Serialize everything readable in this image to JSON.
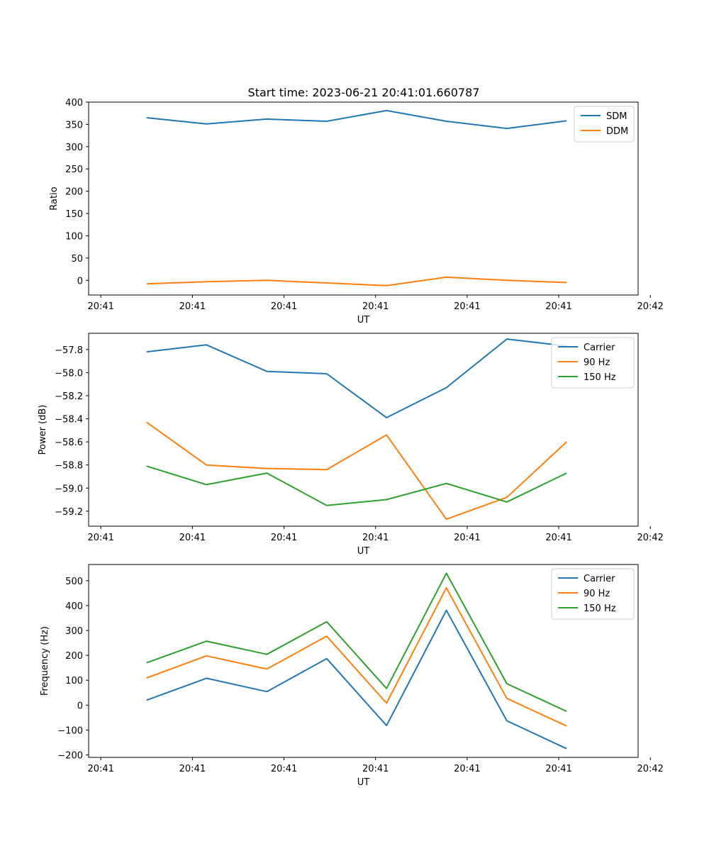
{
  "figure": {
    "title": "Start time: 2023-06-21 20:41:01.660787"
  },
  "chart_data": [
    {
      "type": "line",
      "xlabel": "UT",
      "ylabel": "Ratio",
      "xlim": [
        0.2,
        9.2
      ],
      "x_ticks": [
        0.4,
        1.9,
        3.4,
        4.9,
        6.4,
        7.9,
        9.4
      ],
      "x_tick_labels": [
        "20:41",
        "20:41",
        "20:41",
        "20:41",
        "20:41",
        "20:41",
        "20:42"
      ],
      "ylim": [
        -33,
        400
      ],
      "y_ticks": [
        0,
        50,
        100,
        150,
        200,
        250,
        300,
        350,
        400
      ],
      "y_tick_labels": [
        "0",
        "50",
        "100",
        "150",
        "200",
        "250",
        "300",
        "350",
        "400"
      ],
      "grid": false,
      "legend_position": "top-right",
      "x": [
        1.15,
        2.13,
        3.12,
        4.1,
        5.08,
        6.06,
        7.05,
        8.03
      ],
      "series": [
        {
          "name": "SDM",
          "color": "#1f77b4",
          "values": [
            365,
            351,
            362,
            357,
            381,
            357,
            341,
            358
          ]
        },
        {
          "name": "DDM",
          "color": "#ff7f0e",
          "values": [
            -8,
            -3,
            0,
            -6,
            -12,
            7,
            0,
            -5
          ]
        }
      ]
    },
    {
      "type": "line",
      "xlabel": "UT",
      "ylabel": "Power (dB)",
      "xlim": [
        0.2,
        9.2
      ],
      "x_ticks": [
        0.4,
        1.9,
        3.4,
        4.9,
        6.4,
        7.9,
        9.4
      ],
      "x_tick_labels": [
        "20:41",
        "20:41",
        "20:41",
        "20:41",
        "20:41",
        "20:41",
        "20:42"
      ],
      "ylim": [
        -59.33,
        -57.66
      ],
      "y_ticks": [
        -57.8,
        -58.0,
        -58.2,
        -58.4,
        -58.6,
        -58.8,
        -59.0,
        -59.2
      ],
      "y_tick_labels": [
        "−57.8",
        "−58.0",
        "−58.2",
        "−58.4",
        "−58.6",
        "−58.8",
        "−59.0",
        "−59.2"
      ],
      "grid": false,
      "legend_position": "top-right",
      "x": [
        1.15,
        2.13,
        3.12,
        4.1,
        5.08,
        6.06,
        7.05,
        8.03
      ],
      "series": [
        {
          "name": "Carrier",
          "color": "#1f77b4",
          "values": [
            -57.82,
            -57.76,
            -57.99,
            -58.01,
            -58.39,
            -58.13,
            -57.71,
            -57.77
          ]
        },
        {
          "name": "90 Hz",
          "color": "#ff7f0e",
          "values": [
            -58.43,
            -58.8,
            -58.83,
            -58.84,
            -58.54,
            -59.27,
            -59.08,
            -58.6
          ]
        },
        {
          "name": "150 Hz",
          "color": "#2ca02c",
          "values": [
            -58.81,
            -58.97,
            -58.87,
            -59.15,
            -59.1,
            -58.96,
            -59.12,
            -58.87
          ]
        }
      ]
    },
    {
      "type": "line",
      "xlabel": "UT",
      "ylabel": "Frequency (Hz)",
      "xlim": [
        0.2,
        9.2
      ],
      "x_ticks": [
        0.4,
        1.9,
        3.4,
        4.9,
        6.4,
        7.9,
        9.4
      ],
      "x_tick_labels": [
        "20:41",
        "20:41",
        "20:41",
        "20:41",
        "20:41",
        "20:41",
        "20:42"
      ],
      "ylim": [
        -210,
        565
      ],
      "y_ticks": [
        -200,
        -100,
        0,
        100,
        200,
        300,
        400,
        500
      ],
      "y_tick_labels": [
        "−200",
        "−100",
        "0",
        "100",
        "200",
        "300",
        "400",
        "500"
      ],
      "grid": false,
      "legend_position": "top-right",
      "x": [
        1.15,
        2.13,
        3.12,
        4.1,
        5.08,
        6.06,
        7.05,
        8.03
      ],
      "series": [
        {
          "name": "Carrier",
          "color": "#1f77b4",
          "values": [
            20,
            108,
            54,
            187,
            -82,
            381,
            -63,
            -175
          ]
        },
        {
          "name": "90 Hz",
          "color": "#ff7f0e",
          "values": [
            109,
            198,
            145,
            277,
            8,
            471,
            27,
            -84
          ]
        },
        {
          "name": "150 Hz",
          "color": "#2ca02c",
          "values": [
            170,
            257,
            204,
            335,
            67,
            530,
            86,
            -25
          ]
        }
      ]
    }
  ]
}
